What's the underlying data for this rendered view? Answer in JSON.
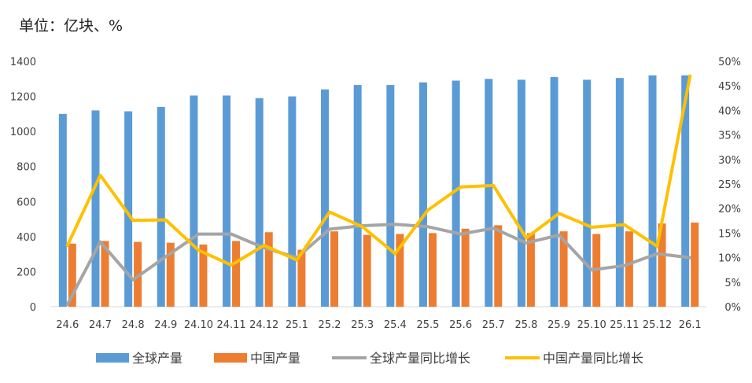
{
  "chart_data": {
    "type": "bar",
    "unit_label": "单位：亿块、%",
    "categories": [
      "24.6",
      "24.7",
      "24.8",
      "24.9",
      "24.10",
      "24.11",
      "24.12",
      "25.1",
      "25.2",
      "25.3",
      "25.4",
      "25.5",
      "25.6",
      "25.7",
      "25.8",
      "25.9",
      "25.10",
      "25.11",
      "25.12",
      "26.1"
    ],
    "left_axis": {
      "min": 0,
      "max": 1400,
      "ticks": [
        "0",
        "200",
        "400",
        "600",
        "800",
        "1000",
        "1200",
        "1400"
      ]
    },
    "right_axis": {
      "min": 0,
      "max": 50,
      "ticks": [
        "0%",
        "5%",
        "10%",
        "15%",
        "20%",
        "25%",
        "30%",
        "35%",
        "40%",
        "45%",
        "50%"
      ]
    },
    "grid": false,
    "legend_position": "bottom",
    "series": [
      {
        "name": "全球产量",
        "kind": "bar",
        "axis": "left",
        "color": "#5b9bd5",
        "values": [
          1100,
          1120,
          1115,
          1140,
          1205,
          1205,
          1190,
          1200,
          1240,
          1265,
          1265,
          1280,
          1290,
          1300,
          1295,
          1310,
          1295,
          1305,
          1320,
          1320
        ]
      },
      {
        "name": "中国产量",
        "kind": "bar",
        "axis": "left",
        "color": "#ed7d31",
        "values": [
          360,
          375,
          370,
          365,
          355,
          375,
          425,
          325,
          430,
          410,
          415,
          420,
          445,
          465,
          420,
          430,
          415,
          430,
          475,
          480
        ]
      },
      {
        "name": "全球产量同比增长",
        "kind": "line",
        "axis": "right",
        "color": "#a5a5a5",
        "values": [
          0.5,
          13.2,
          5.5,
          10.2,
          14.8,
          14.8,
          12.0,
          10.0,
          15.8,
          16.5,
          16.8,
          16.3,
          14.8,
          16.0,
          13.0,
          14.6,
          7.5,
          8.4,
          10.8,
          10.0
        ]
      },
      {
        "name": "中国产量同比增长",
        "kind": "line",
        "axis": "right",
        "color": "#ffc000",
        "values": [
          12.5,
          26.8,
          17.6,
          17.7,
          11.5,
          8.5,
          12.5,
          9.5,
          19.3,
          16.3,
          10.8,
          19.7,
          24.4,
          24.7,
          14.0,
          19.0,
          16.2,
          16.7,
          12.3,
          47.0
        ]
      }
    ]
  }
}
